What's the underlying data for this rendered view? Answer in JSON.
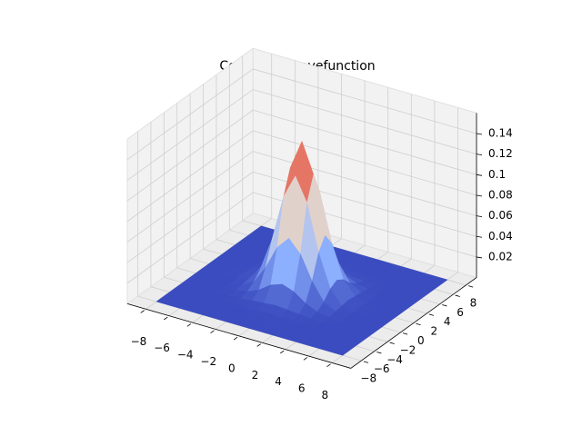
{
  "chart_data": {
    "type": "surface3d",
    "title": "Computed wavefunction",
    "colormap": "coolwarm",
    "x": [
      -8,
      -7,
      -6,
      -5,
      -4,
      -3,
      -2,
      -1,
      0,
      1,
      2,
      3,
      4,
      5,
      6,
      7,
      8
    ],
    "y": [
      -8,
      -7,
      -6,
      -5,
      -4,
      -3,
      -2,
      -1,
      0,
      1,
      2,
      3,
      4,
      5,
      6,
      7,
      8
    ],
    "z": [
      [
        0,
        0,
        0,
        0,
        0,
        0,
        0,
        0,
        0,
        0,
        0,
        0,
        0,
        0,
        0,
        0,
        0
      ],
      [
        0,
        0,
        0,
        0,
        0,
        0,
        0,
        0,
        0,
        0,
        0,
        0,
        0,
        0,
        0,
        0,
        0
      ],
      [
        0,
        0,
        0,
        0,
        0,
        0,
        0,
        0,
        0,
        0,
        0,
        0,
        0,
        0,
        0,
        0,
        0
      ],
      [
        0,
        0,
        0,
        0,
        0,
        0,
        0,
        0,
        0.001,
        0,
        0,
        0,
        0,
        0,
        0,
        0,
        0
      ],
      [
        0,
        0,
        0,
        0,
        0,
        0.001,
        0.002,
        0.003,
        0.004,
        0.003,
        0.002,
        0.001,
        0,
        0,
        0,
        0,
        0
      ],
      [
        0,
        0,
        0,
        0,
        0.001,
        0.003,
        0.008,
        0.016,
        0.02,
        0.016,
        0.008,
        0.003,
        0.001,
        0,
        0,
        0,
        0
      ],
      [
        0,
        0,
        0,
        0,
        0.002,
        0.008,
        0.025,
        0.048,
        0.06,
        0.048,
        0.025,
        0.008,
        0.002,
        0,
        0,
        0,
        0
      ],
      [
        0,
        0,
        0,
        0,
        0.003,
        0.016,
        0.048,
        0.093,
        0.116,
        0.093,
        0.048,
        0.016,
        0.003,
        0,
        0,
        0,
        0
      ],
      [
        0,
        0,
        0,
        0.001,
        0.004,
        0.02,
        0.06,
        0.116,
        0.145,
        0.116,
        0.06,
        0.02,
        0.004,
        0.001,
        0,
        0,
        0
      ],
      [
        0,
        0,
        0,
        0,
        0.003,
        0.016,
        0.048,
        0.093,
        0.116,
        0.093,
        0.048,
        0.016,
        0.003,
        0,
        0,
        0,
        0
      ],
      [
        0,
        0,
        0,
        0,
        0.002,
        0.008,
        0.025,
        0.048,
        0.06,
        0.048,
        0.025,
        0.008,
        0.002,
        0,
        0,
        0,
        0
      ],
      [
        0,
        0,
        0,
        0,
        0.001,
        0.003,
        0.008,
        0.016,
        0.02,
        0.016,
        0.008,
        0.003,
        0.001,
        0,
        0,
        0,
        0
      ],
      [
        0,
        0,
        0,
        0,
        0,
        0.001,
        0.002,
        0.003,
        0.004,
        0.003,
        0.002,
        0.001,
        0,
        0,
        0,
        0,
        0
      ],
      [
        0,
        0,
        0,
        0,
        0,
        0,
        0,
        0,
        0.001,
        0,
        0,
        0,
        0,
        0,
        0,
        0,
        0
      ],
      [
        0,
        0,
        0,
        0,
        0,
        0,
        0,
        0,
        0,
        0,
        0,
        0,
        0,
        0,
        0,
        0,
        0
      ],
      [
        0,
        0,
        0,
        0,
        0,
        0,
        0,
        0,
        0,
        0,
        0,
        0,
        0,
        0,
        0,
        0,
        0
      ],
      [
        0,
        0,
        0,
        0,
        0,
        0,
        0,
        0,
        0,
        0,
        0,
        0,
        0,
        0,
        0,
        0,
        0
      ]
    ],
    "xlim": [
      -9.6,
      9.6
    ],
    "ylim": [
      -9.6,
      9.6
    ],
    "zlim": [
      0,
      0.16
    ],
    "xticks": [
      {
        "value": -8,
        "label": "−8"
      },
      {
        "value": -6,
        "label": "−6"
      },
      {
        "value": -4,
        "label": "−4"
      },
      {
        "value": -2,
        "label": "−2"
      },
      0,
      2,
      4,
      6,
      8
    ],
    "yticks": [
      {
        "value": -8,
        "label": "−8"
      },
      {
        "value": -6,
        "label": "−6"
      },
      {
        "value": -4,
        "label": "−4"
      },
      {
        "value": -2,
        "label": "−2"
      },
      0,
      2,
      4,
      6,
      8
    ],
    "zticks": [
      0.02,
      0.04,
      0.06,
      0.08,
      0.1,
      0.12,
      0.14
    ],
    "grid": true
  }
}
